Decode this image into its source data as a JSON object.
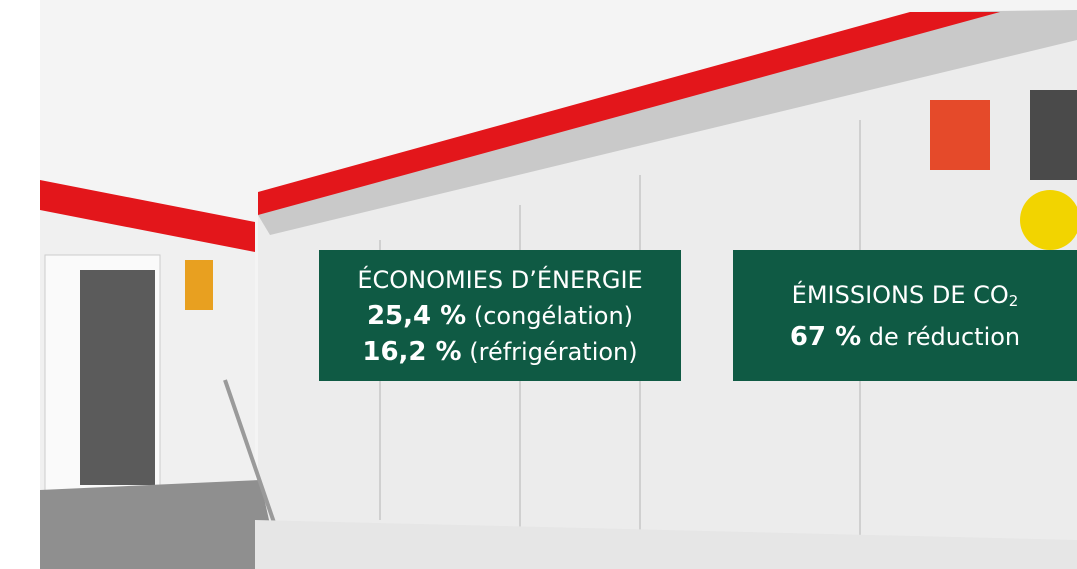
{
  "overlays": [
    {
      "heading": "ÉCONOMIES D’ÉNERGIE",
      "lines": [
        {
          "value": "25,4 %",
          "label": "(congélation)"
        },
        {
          "value": "16,2 %",
          "label": "(réfrigération)"
        }
      ]
    },
    {
      "heading": "ÉMISSIONS DE CO",
      "heading_subscript": "2",
      "lines": [
        {
          "value": "67 %",
          "label": "de réduction"
        }
      ]
    }
  ]
}
